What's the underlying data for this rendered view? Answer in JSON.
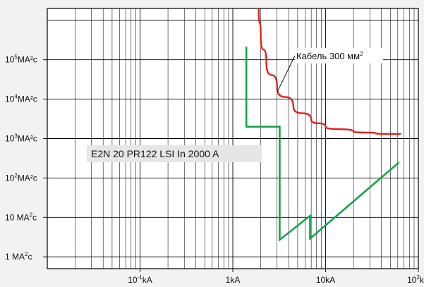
{
  "chart_data": {
    "type": "line",
    "x_scale": "log",
    "y_scale": "log",
    "xlim_kA": [
      0.01,
      100
    ],
    "ylim_MA2s": [
      0.5,
      2000000
    ],
    "grid": true,
    "x_ticks": [
      {
        "value": 0.1,
        "base": "10",
        "exp": "-1",
        "unit": "kA"
      },
      {
        "value": 1,
        "base": "1",
        "exp": "",
        "unit": "kA"
      },
      {
        "value": 10,
        "base": "10",
        "exp": "",
        "unit": "kA"
      },
      {
        "value": 100,
        "base": "10",
        "exp": "2",
        "unit": "kA"
      }
    ],
    "y_ticks": [
      {
        "value": 1,
        "base": "1 MA",
        "exp": "2",
        "unit": "c"
      },
      {
        "value": 10,
        "base": "10 MA",
        "exp": "2",
        "unit": "c"
      },
      {
        "value": 100,
        "base": "10",
        "exp": "2",
        "unit": "MA²c"
      },
      {
        "value": 1000,
        "base": "10",
        "exp": "3",
        "unit": "MA²c"
      },
      {
        "value": 10000,
        "base": "10",
        "exp": "4",
        "unit": "MA²c"
      },
      {
        "value": 100000,
        "base": "10",
        "exp": "5",
        "unit": "MA²c"
      }
    ],
    "series": [
      {
        "name": "Кабель 300 мм²",
        "label_text": "Кабель 300 мм",
        "label_sup": "2",
        "color": "#e0201b",
        "points": [
          [
            1.9,
            2000000
          ],
          [
            2,
            390000
          ],
          [
            2.3,
            84000
          ],
          [
            3,
            20000
          ],
          [
            4.5,
            6400
          ],
          [
            7,
            3000
          ],
          [
            10,
            2000
          ],
          [
            20,
            1500
          ],
          [
            35,
            1350
          ],
          [
            65,
            1280
          ]
        ]
      },
      {
        "name": "E2N 20 PR122 LSI In 2000 A",
        "label_text": "E2N 20 PR122 LSI In 2000 A",
        "color": "#14a34a",
        "points": [
          [
            1.4,
            215000
          ],
          [
            1.4,
            2000
          ],
          [
            3.2,
            2000
          ],
          [
            3.2,
            2.7
          ],
          [
            6.8,
            11
          ],
          [
            6.8,
            2.9
          ],
          [
            62,
            250
          ]
        ]
      }
    ]
  }
}
